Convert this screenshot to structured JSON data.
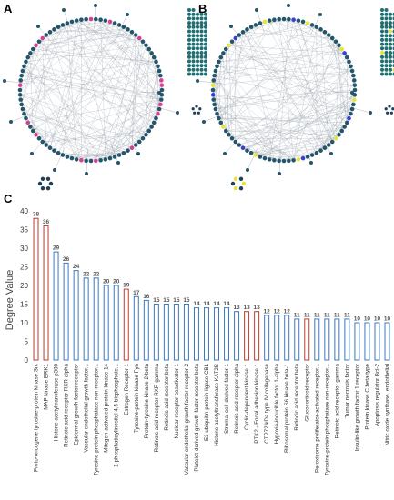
{
  "panels": {
    "a": "A",
    "b": "B",
    "c": "C"
  },
  "network_colors": {
    "node": "#25556b",
    "node_dark": "#1f3f5a",
    "edge": "#9aa4ad",
    "pink": "#d8408f",
    "yellow": "#e8e23a",
    "blue": "#3a3fd6",
    "grid_node": "#1f6f72"
  },
  "chart_data": {
    "type": "bar",
    "ylabel": "Degree Value",
    "ylim": [
      0,
      40
    ],
    "yticks": [
      0,
      5,
      10,
      15,
      20,
      25,
      30,
      35,
      40
    ],
    "categories": [
      "Proto-oncogene tyrosine-protein kinase Src",
      "MAP kinase ERK1",
      "Histone acetyltransferase p300",
      "Retinoic acid receptor RXR-alpha",
      "Epidermal growth factor receptor",
      "Vascular endothelial growth factor...",
      "Tyrosine-protein phosphatase non-receptor...",
      "Mitogen-activated protein kinase 14",
      "1-phosphatidylinositol 4,5-bisphosphate...",
      "Estrogen Receptor 1",
      "Tyrosine-protein kinase Fyn",
      "Protein-tyrosine kinase 2-beta",
      "Retinoic acid receptor RXR-gamma",
      "Retinoic acid receptor beta",
      "Nuclear receptor coactivator 1",
      "Vascular endothelial growth factor receptor 2",
      "Platelet-derived growth factor receptor beta",
      "E3 ubiquitin-protein ligase CBL",
      "Histone acetyltransferase KAT2B",
      "Stromal cell-derived factor 1",
      "Retinoic acid receptor alpha",
      "Cyclin-dependent kinase 1",
      "PTK2 - Focal adhesion kinase 1",
      "CTP72 kDa type IV collagenase",
      "Hypoxia-inducible factor 1-alpha",
      "Ribosomal protein S6 kinase beta-1",
      "Retinoic acid receptor beta",
      "Glucocorticoid receptor",
      "Peroxisome proliferator-activated receptor...",
      "Tyrosine-protein phosphatase non-receptor...",
      "Retinoic acid receptor gamma",
      "Tumor necrosis factor",
      "Insulin-like growth factor 1 receptor",
      "Protein kinase C beta type",
      "Apoptosis regulator Bcl-2",
      "Nitric oxide synthase, endothelial"
    ],
    "values": [
      38,
      36,
      29,
      26,
      24,
      22,
      22,
      20,
      20,
      19,
      17,
      16,
      15,
      15,
      15,
      15,
      14,
      14,
      14,
      14,
      13,
      13,
      13,
      12,
      12,
      12,
      11,
      11,
      11,
      11,
      11,
      11,
      10,
      10,
      10,
      10
    ],
    "highlighted": [
      0,
      1,
      9,
      21,
      22,
      27
    ],
    "colors": {
      "normal": "#3a78c2",
      "highlight": "#c0392b"
    }
  }
}
